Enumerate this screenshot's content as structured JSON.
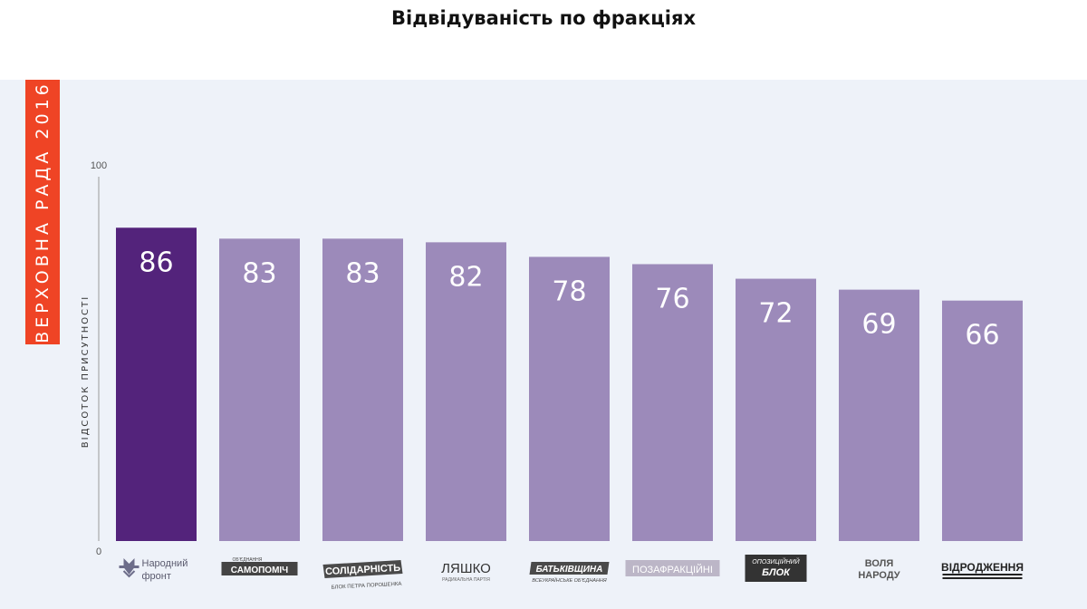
{
  "page": {
    "title": "Відвідуваність по фракціях",
    "side_banner": "Верховна Рада 2016"
  },
  "colors": {
    "highlight_bar": "#53237b",
    "bar": "#9c8aba",
    "banner": "#ef4425",
    "panel_bg": "#eef2f9",
    "axis": "#999999"
  },
  "chart_data": {
    "type": "bar",
    "title": "Відвідуваність по фракціях",
    "ylabel": "Відсоток присутності",
    "xlabel": "",
    "ylim": [
      0,
      100
    ],
    "y_ticks": [
      "0",
      "100"
    ],
    "grid": false,
    "legend": "none",
    "highlight_index": 0,
    "categories": [
      "Народний фронт",
      "Об'єднання Самопоміч",
      "Солідарність Блок Петра Порошенка",
      "Ляшко Радикальна партія",
      "Батьківщина Всеукраїнське об'єднання",
      "Позафракційні",
      "Опозиційний блок",
      "Воля народу",
      "Відродження"
    ],
    "values": [
      86,
      83,
      83,
      82,
      78,
      76,
      72,
      69,
      66
    ]
  },
  "logos": [
    {
      "icon": "trident-icon",
      "line1": "Народний",
      "line2": "фронт"
    },
    {
      "small": "ОБ'ЄДНАННЯ",
      "main": "САМОПОМІЧ"
    },
    {
      "main": "СОЛІДАРНІСТЬ",
      "sub": "БЛОК ПЕТРА ПОРОШЕНКА"
    },
    {
      "main": "ЛЯШКО",
      "sub": "РАДИКАЛЬНА ПАРТІЯ"
    },
    {
      "main": "БАТЬКІВЩИНА",
      "sub": "ВСЕУКРАЇНСЬКЕ ОБ'ЄДНАННЯ"
    },
    {
      "main": "ПОЗАФРАКЦІЙНІ"
    },
    {
      "small": "ОПОЗИЦІЙНИЙ",
      "main": "БЛОК"
    },
    {
      "line1": "ВОЛЯ",
      "line2": "НАРОДУ"
    },
    {
      "main": "ВІДРОДЖЕННЯ"
    }
  ]
}
